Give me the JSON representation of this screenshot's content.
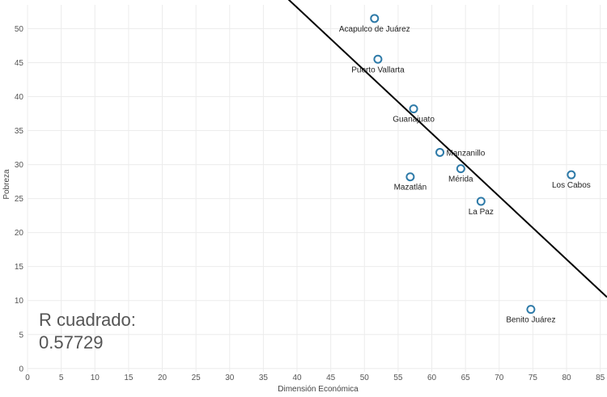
{
  "chart_data": {
    "type": "scatter",
    "xlabel": "Dimensión Económica",
    "ylabel": "Pobreza",
    "xlim": [
      0,
      86
    ],
    "ylim": [
      -0.5,
      53.5
    ],
    "xticks": [
      0,
      5,
      10,
      15,
      20,
      25,
      30,
      35,
      40,
      45,
      50,
      55,
      60,
      65,
      70,
      75,
      80,
      85
    ],
    "yticks": [
      0,
      5,
      10,
      15,
      20,
      25,
      30,
      35,
      40,
      45,
      50
    ],
    "grid": true,
    "points": [
      {
        "label": "Acapulco de Juárez",
        "x": 51.5,
        "y": 51.5
      },
      {
        "label": "Puerto Vallarta",
        "x": 52.0,
        "y": 45.5
      },
      {
        "label": "Guanajuato",
        "x": 57.3,
        "y": 38.2
      },
      {
        "label": "Manzanillo",
        "x": 61.2,
        "y": 31.8
      },
      {
        "label": "Mazatlán",
        "x": 56.8,
        "y": 28.2
      },
      {
        "label": "Mérida",
        "x": 64.3,
        "y": 29.4
      },
      {
        "label": "Los Cabos",
        "x": 80.7,
        "y": 28.5
      },
      {
        "label": "La Paz",
        "x": 67.3,
        "y": 24.6
      },
      {
        "label": "Benito Juárez",
        "x": 74.7,
        "y": 8.7
      }
    ],
    "trend_line": {
      "x": [
        38.5,
        86
      ],
      "y": [
        54.5,
        10.5
      ]
    },
    "annotation": {
      "label": "R cuadrado:",
      "value": "0.57729"
    },
    "colors": {
      "marker": "#2e7aa8",
      "trend": "#000000",
      "grid": "#ececec"
    }
  }
}
